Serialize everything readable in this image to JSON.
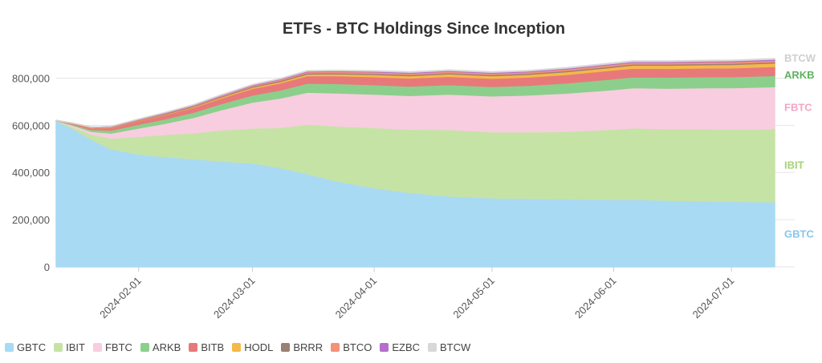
{
  "chart_data": {
    "type": "area",
    "stacked": true,
    "title": "ETFs - BTC Holdings Since Inception",
    "xlabel": "",
    "ylabel": "",
    "ylim": [
      0,
      900000
    ],
    "yticks": [
      0,
      200000,
      400000,
      600000,
      800000
    ],
    "ytick_labels": [
      "0",
      "200,000",
      "400,000",
      "600,000",
      "800,000"
    ],
    "xticks": [
      "2024-02-01",
      "2024-03-01",
      "2024-04-01",
      "2024-05-01",
      "2024-06-01",
      "2024-07-01"
    ],
    "x_range": [
      "2024-01-11",
      "2024-07-12"
    ],
    "grid": "horizontal",
    "legend_position": "bottom-left",
    "x": [
      "2024-01-11",
      "2024-01-15",
      "2024-01-20",
      "2024-01-25",
      "2024-02-01",
      "2024-02-08",
      "2024-02-15",
      "2024-02-22",
      "2024-03-01",
      "2024-03-08",
      "2024-03-15",
      "2024-03-22",
      "2024-04-01",
      "2024-04-10",
      "2024-04-20",
      "2024-05-01",
      "2024-05-10",
      "2024-05-20",
      "2024-06-01",
      "2024-06-06",
      "2024-06-15",
      "2024-06-25",
      "2024-07-01",
      "2024-07-12"
    ],
    "series": [
      {
        "name": "GBTC",
        "color": "#a9daf3",
        "values": [
          620000,
          588000,
          540000,
          500000,
          478000,
          466000,
          458000,
          448000,
          440000,
          420000,
          395000,
          365000,
          335000,
          315000,
          300000,
          292000,
          290000,
          288000,
          286000,
          286000,
          282000,
          279000,
          277000,
          275000
        ]
      },
      {
        "name": "IBIT",
        "color": "#c6e3a6",
        "values": [
          0,
          8000,
          22000,
          45000,
          75000,
          95000,
          110000,
          132000,
          148000,
          170000,
          210000,
          232000,
          255000,
          268000,
          282000,
          280000,
          282000,
          286000,
          297000,
          303000,
          303000,
          306000,
          306000,
          310000
        ]
      },
      {
        "name": "FBTC",
        "color": "#f8cde0",
        "values": [
          0,
          5000,
          12000,
          22000,
          35000,
          48000,
          65000,
          85000,
          110000,
          125000,
          135000,
          140000,
          142000,
          143000,
          150000,
          152000,
          156000,
          162000,
          168000,
          170000,
          172000,
          174000,
          176000,
          178000
        ]
      },
      {
        "name": "ARKB",
        "color": "#8ccf8c",
        "values": [
          0,
          4000,
          8000,
          12000,
          16000,
          19000,
          22000,
          26000,
          30000,
          34000,
          38000,
          40000,
          40000,
          40000,
          40000,
          40000,
          41000,
          43000,
          46000,
          46000,
          47000,
          47000,
          47000,
          48000
        ]
      },
      {
        "name": "BITB",
        "color": "#e8797a",
        "values": [
          0,
          3000,
          7000,
          11000,
          15000,
          18000,
          21000,
          24000,
          28000,
          30000,
          32000,
          33000,
          34000,
          34000,
          35000,
          35000,
          35000,
          36000,
          37000,
          37000,
          37000,
          37000,
          37000,
          38000
        ]
      },
      {
        "name": "HODL",
        "color": "#f5b84a",
        "values": [
          0,
          500,
          1000,
          1500,
          2000,
          2500,
          3000,
          4000,
          5000,
          6000,
          7000,
          8000,
          9000,
          10000,
          11000,
          11000,
          11500,
          12000,
          12500,
          13000,
          13500,
          14000,
          14500,
          15000
        ]
      },
      {
        "name": "BRRR",
        "color": "#9c8074",
        "values": [
          0,
          500,
          1000,
          1500,
          2000,
          2500,
          3000,
          3500,
          4000,
          4500,
          5000,
          5000,
          5000,
          5000,
          5000,
          5000,
          5000,
          5000,
          5000,
          5000,
          5000,
          5000,
          5000,
          5000
        ]
      },
      {
        "name": "BTCO",
        "color": "#f39279",
        "values": [
          0,
          500,
          1000,
          1500,
          2000,
          2500,
          3000,
          3500,
          4000,
          4500,
          5000,
          5500,
          6000,
          6000,
          6000,
          6000,
          6000,
          6500,
          7000,
          7000,
          7000,
          7000,
          7000,
          7000
        ]
      },
      {
        "name": "EZBC",
        "color": "#b46fcc",
        "values": [
          0,
          200,
          400,
          700,
          1000,
          1300,
          1600,
          2000,
          2500,
          2800,
          3000,
          3200,
          3500,
          3500,
          3500,
          3500,
          3500,
          3600,
          3800,
          3800,
          3900,
          3900,
          4000,
          4000
        ]
      },
      {
        "name": "BTCW",
        "color": "#d8d8d8",
        "values": [
          0,
          100,
          200,
          300,
          500,
          600,
          800,
          1000,
          1200,
          1400,
          1600,
          1800,
          2000,
          2000,
          2000,
          2000,
          2000,
          2200,
          2300,
          2400,
          2400,
          2500,
          2500,
          2600
        ]
      }
    ],
    "end_labels": [
      {
        "text": "BTCW",
        "series": "BTCW",
        "color": "#cfcfcf"
      },
      {
        "text": "ARKB",
        "series": "ARKB",
        "color": "#5fb25f"
      },
      {
        "text": "FBTC",
        "series": "FBTC",
        "color": "#f2a7c4"
      },
      {
        "text": "IBIT",
        "series": "IBIT",
        "color": "#a6d27a"
      },
      {
        "text": "GBTC",
        "series": "GBTC",
        "color": "#86c7ea"
      }
    ]
  }
}
